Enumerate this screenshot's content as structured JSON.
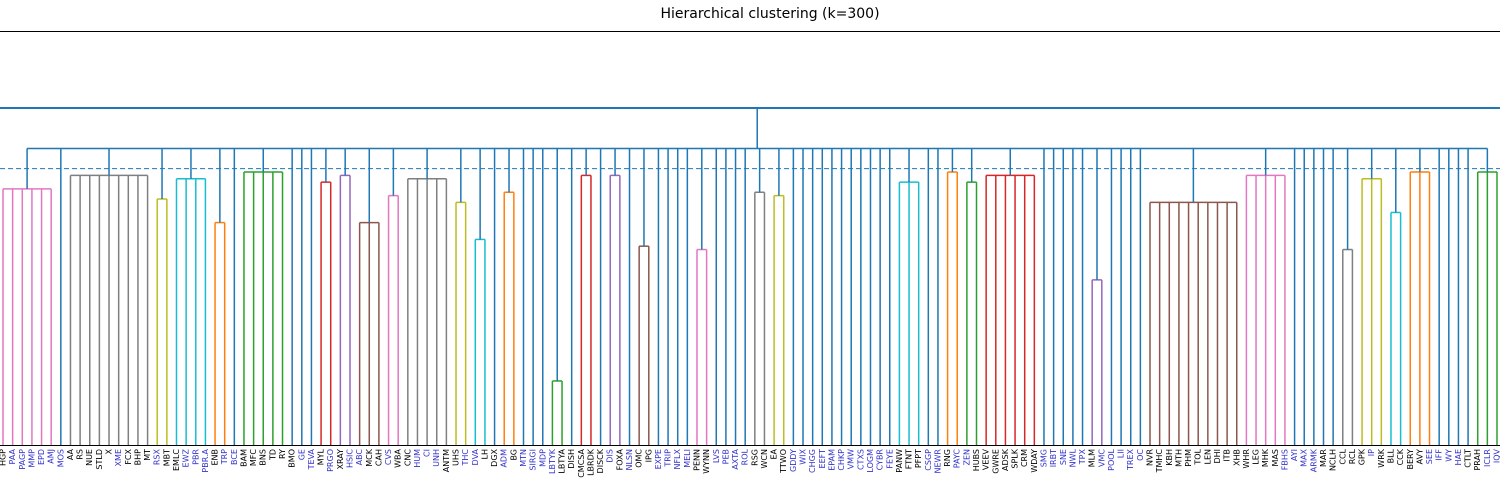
{
  "chart_data": {
    "type": "dendrogram",
    "title": "Hierarchical clustering (k=300)",
    "ylim": [
      0,
      100
    ],
    "threshold": 82,
    "merge_height": 88,
    "link_color": "#1f77b4",
    "leaves": [
      "HGP",
      "PAA",
      "PAGP",
      "MMP",
      "EPD",
      "AMJ",
      "MOS",
      "AA",
      "RS",
      "NUE",
      "STLD",
      "X",
      "XME",
      "FCX",
      "BHP",
      "MT",
      "RSX",
      "MBT",
      "EMLC",
      "EWZ",
      "PBR",
      "PBR.A",
      "ENB",
      "TRP",
      "BCE",
      "BAM",
      "MFC",
      "BNS",
      "TD",
      "RY",
      "BMO",
      "GE",
      "TEVA",
      "MYL",
      "PRGO",
      "XRAY",
      "HSIC",
      "ABC",
      "MCK",
      "CAH",
      "CVS",
      "WBA",
      "CNC",
      "HUM",
      "CI",
      "UNH",
      "ANTM",
      "UHS",
      "THC",
      "DVA",
      "LH",
      "DGX",
      "ADM",
      "BG",
      "MTN",
      "SIRGI",
      "MDP",
      "LBTYK",
      "LBTYA",
      "DISH",
      "CMCSA",
      "LBRDK",
      "DISCK",
      "DIS",
      "FOXA",
      "NLSN",
      "OMC",
      "IPG",
      "EXPE",
      "TRIP",
      "NFLX",
      "MELI",
      "PENN",
      "WYNN",
      "LVS",
      "PEB",
      "AXTA",
      "ROL",
      "RSG",
      "WCN",
      "EA",
      "TTWO",
      "GDDY",
      "WIX",
      "CHGG",
      "EEFT",
      "EPAM",
      "CHKP",
      "VMW",
      "CTXS",
      "LOGM",
      "CYBR",
      "FEYE",
      "PANW",
      "FTNT",
      "PFPT",
      "CSGP",
      "NEWR",
      "RNG",
      "PAYC",
      "ZEN",
      "HUBS",
      "VEEV",
      "GWRE",
      "ADSK",
      "SPLK",
      "CRM",
      "WDAY",
      "SMG",
      "IRBT",
      "SNE",
      "NWL",
      "TPX",
      "MLM",
      "VMC",
      "POOL",
      "LII",
      "TREX",
      "OC",
      "NVR",
      "TMHC",
      "KBH",
      "MTH",
      "PHM",
      "TOL",
      "LEN",
      "DHI",
      "ITB",
      "XHB",
      "WHR",
      "LEG",
      "MHK",
      "MAS",
      "FBHS",
      "AYI",
      "MAX",
      "ARMK",
      "MAR",
      "NCLH",
      "CCL",
      "RCL",
      "GPK",
      "IP",
      "WRK",
      "BLL",
      "CCK",
      "BERY",
      "AVY",
      "SEE",
      "IFF",
      "WY",
      "HAE",
      "CTLT",
      "PRAH",
      "ICLR",
      "IQV"
    ],
    "label_colors": [
      "#000",
      "#33c",
      "#33c",
      "#33c",
      "#33c",
      "#33c",
      "#33c",
      "#000",
      "#000",
      "#000",
      "#000",
      "#000",
      "#33c",
      "#000",
      "#000",
      "#000",
      "#33c",
      "#000",
      "#000",
      "#33c",
      "#33c",
      "#33c",
      "#000",
      "#33c",
      "#33c",
      "#000",
      "#000",
      "#000",
      "#000",
      "#000",
      "#000",
      "#33c",
      "#33c",
      "#000",
      "#33c",
      "#000",
      "#33c",
      "#33c",
      "#000",
      "#000",
      "#33c",
      "#000",
      "#000",
      "#33c",
      "#33c",
      "#33c",
      "#000",
      "#000",
      "#33c",
      "#33c",
      "#000",
      "#000",
      "#33c",
      "#000",
      "#33c",
      "#33c",
      "#33c",
      "#33c",
      "#000",
      "#000",
      "#000",
      "#000",
      "#000",
      "#33c",
      "#000",
      "#33c",
      "#000",
      "#000",
      "#33c",
      "#33c",
      "#33c",
      "#33c",
      "#000",
      "#000",
      "#33c",
      "#33c",
      "#33c",
      "#33c",
      "#000",
      "#000",
      "#000",
      "#000",
      "#33c",
      "#33c",
      "#33c",
      "#33c",
      "#33c",
      "#33c",
      "#33c",
      "#33c",
      "#33c",
      "#33c",
      "#33c",
      "#000",
      "#000",
      "#000",
      "#33c",
      "#33c",
      "#000",
      "#33c",
      "#33c",
      "#000",
      "#000",
      "#000",
      "#000",
      "#000",
      "#000",
      "#000",
      "#33c",
      "#33c",
      "#33c",
      "#33c",
      "#33c",
      "#000",
      "#33c",
      "#33c",
      "#33c",
      "#33c",
      "#33c",
      "#000",
      "#000",
      "#000",
      "#000",
      "#000",
      "#000",
      "#000",
      "#000",
      "#000",
      "#000",
      "#000",
      "#000",
      "#000",
      "#000",
      "#33c",
      "#33c",
      "#33c",
      "#33c",
      "#000",
      "#000",
      "#000",
      "#000",
      "#000",
      "#33c",
      "#000",
      "#000",
      "#000",
      "#000",
      "#000",
      "#33c",
      "#33c",
      "#33c",
      "#33c",
      "#000",
      "#000",
      "#33c",
      "#33c"
    ],
    "groups": [
      {
        "size": 6,
        "color": "#e377c2",
        "height": 76
      },
      {
        "size": 1
      },
      {
        "size": 9,
        "color": "#7f7f7f",
        "height": 80
      },
      {
        "size": 2,
        "color": "#bcbd22",
        "height": 73
      },
      {
        "size": 4,
        "color": "#17becf",
        "height": 79
      },
      {
        "size": 2,
        "color": "#ff7f0e",
        "height": 66
      },
      {
        "size": 1
      },
      {
        "size": 5,
        "color": "#2ca02c",
        "height": 81
      },
      {
        "size": 1
      },
      {
        "size": 1
      },
      {
        "size": 1
      },
      {
        "size": 2,
        "color": "#d62728",
        "height": 78
      },
      {
        "size": 2,
        "color": "#9467bd",
        "height": 80
      },
      {
        "size": 3,
        "color": "#8c564b",
        "height": 66
      },
      {
        "size": 2,
        "color": "#e377c2",
        "height": 74
      },
      {
        "size": 5,
        "color": "#7f7f7f",
        "height": 79
      },
      {
        "size": 2,
        "color": "#bcbd22",
        "height": 72
      },
      {
        "size": 2,
        "color": "#17becf",
        "height": 61
      },
      {
        "size": 1
      },
      {
        "size": 2,
        "color": "#ff7f0e",
        "height": 75
      },
      {
        "size": 1
      },
      {
        "size": 1
      },
      {
        "size": 1
      },
      {
        "size": 2,
        "color": "#2ca02c",
        "height": 19
      },
      {
        "size": 1
      },
      {
        "size": 2,
        "color": "#d62728",
        "height": 80
      },
      {
        "size": 1
      },
      {
        "size": 2,
        "color": "#9467bd",
        "height": 80
      },
      {
        "size": 1
      },
      {
        "size": 2,
        "color": "#8c564b",
        "height": 59
      },
      {
        "size": 1
      },
      {
        "size": 1
      },
      {
        "size": 1
      },
      {
        "size": 1
      },
      {
        "size": 2,
        "color": "#e377c2",
        "height": 58
      },
      {
        "size": 1
      },
      {
        "size": 1
      },
      {
        "size": 1
      },
      {
        "size": 1
      },
      {
        "size": 2,
        "color": "#7f7f7f",
        "height": 75
      },
      {
        "size": 2,
        "color": "#bcbd22",
        "height": 74
      },
      {
        "size": 1
      },
      {
        "size": 1
      },
      {
        "size": 1
      },
      {
        "size": 1
      },
      {
        "size": 1
      },
      {
        "size": 1
      },
      {
        "size": 1
      },
      {
        "size": 1
      },
      {
        "size": 1
      },
      {
        "size": 1
      },
      {
        "size": 1
      },
      {
        "size": 3,
        "color": "#17becf",
        "height": 78
      },
      {
        "size": 1
      },
      {
        "size": 1
      },
      {
        "size": 2,
        "color": "#ff7f0e",
        "height": 81
      },
      {
        "size": 2,
        "color": "#2ca02c",
        "height": 78
      },
      {
        "size": 6,
        "color": "#d62728",
        "height": 80
      },
      {
        "size": 1
      },
      {
        "size": 1
      },
      {
        "size": 1
      },
      {
        "size": 1
      },
      {
        "size": 1
      },
      {
        "size": 2,
        "color": "#9467bd",
        "height": 49
      },
      {
        "size": 1
      },
      {
        "size": 1
      },
      {
        "size": 1
      },
      {
        "size": 1
      },
      {
        "size": 10,
        "color": "#8c564b",
        "height": 72
      },
      {
        "size": 5,
        "color": "#e377c2",
        "height": 80
      },
      {
        "size": 1
      },
      {
        "size": 1
      },
      {
        "size": 1
      },
      {
        "size": 1
      },
      {
        "size": 1
      },
      {
        "size": 2,
        "color": "#7f7f7f",
        "height": 58
      },
      {
        "size": 3,
        "color": "#bcbd22",
        "height": 79
      },
      {
        "size": 2,
        "color": "#17becf",
        "height": 69
      },
      {
        "size": 3,
        "color": "#ff7f0e",
        "height": 81
      },
      {
        "size": 1
      },
      {
        "size": 1
      },
      {
        "size": 1
      },
      {
        "size": 1
      },
      {
        "size": 3,
        "color": "#2ca02c",
        "height": 81
      }
    ]
  }
}
